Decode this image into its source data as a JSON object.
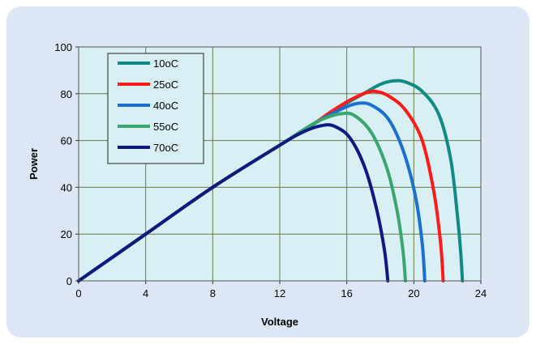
{
  "chart_data": {
    "type": "line",
    "title": "",
    "xlabel": "Voltage",
    "ylabel": "Power",
    "xlim": [
      0,
      24
    ],
    "ylim": [
      0,
      100
    ],
    "xticks": [
      "0",
      "4",
      "8",
      "12",
      "16",
      "20",
      "24"
    ],
    "yticks": [
      "0",
      "20",
      "40",
      "60",
      "80",
      "100"
    ],
    "grid": true,
    "legend_position": "top-left",
    "plot_background": "#d8f0f4",
    "series": [
      {
        "name": "10oC",
        "color": "#0f8a84",
        "points": [
          [
            0,
            0
          ],
          [
            4,
            20
          ],
          [
            8,
            40
          ],
          [
            12,
            58
          ],
          [
            14,
            67
          ],
          [
            16,
            76
          ],
          [
            17,
            80
          ],
          [
            18,
            84
          ],
          [
            18.8,
            85.5
          ],
          [
            19.5,
            85
          ],
          [
            20.5,
            81
          ],
          [
            21.5,
            71
          ],
          [
            22.2,
            52
          ],
          [
            22.6,
            28
          ],
          [
            22.8,
            12
          ],
          [
            22.9,
            0
          ]
        ]
      },
      {
        "name": "25oC",
        "color": "#ff1a1a",
        "points": [
          [
            0,
            0
          ],
          [
            4,
            20
          ],
          [
            8,
            40
          ],
          [
            12,
            58
          ],
          [
            14,
            67
          ],
          [
            15,
            72
          ],
          [
            16,
            76.5
          ],
          [
            17,
            80
          ],
          [
            17.7,
            81
          ],
          [
            18.5,
            79
          ],
          [
            19.5,
            73
          ],
          [
            20.5,
            60
          ],
          [
            21.2,
            38
          ],
          [
            21.6,
            16
          ],
          [
            21.75,
            0
          ]
        ]
      },
      {
        "name": "40oC",
        "color": "#1a6fd1",
        "points": [
          [
            0,
            0
          ],
          [
            4,
            20
          ],
          [
            8,
            40
          ],
          [
            12,
            58
          ],
          [
            14,
            67
          ],
          [
            15,
            71
          ],
          [
            16,
            74.5
          ],
          [
            16.8,
            76
          ],
          [
            17.5,
            75
          ],
          [
            18.5,
            69
          ],
          [
            19.4,
            55
          ],
          [
            20.1,
            36
          ],
          [
            20.5,
            16
          ],
          [
            20.65,
            0
          ]
        ]
      },
      {
        "name": "55oC",
        "color": "#3aa66e",
        "points": [
          [
            0,
            0
          ],
          [
            4,
            20
          ],
          [
            8,
            40
          ],
          [
            12,
            58
          ],
          [
            13.5,
            65
          ],
          [
            14.5,
            69
          ],
          [
            15.7,
            71.5
          ],
          [
            16.5,
            70.5
          ],
          [
            17.5,
            63
          ],
          [
            18.4,
            48
          ],
          [
            19,
            30
          ],
          [
            19.35,
            13
          ],
          [
            19.5,
            0
          ]
        ]
      },
      {
        "name": "70oC",
        "color": "#0d1a80",
        "points": [
          [
            0,
            0
          ],
          [
            4,
            20
          ],
          [
            8,
            40
          ],
          [
            12,
            58
          ],
          [
            13.5,
            64
          ],
          [
            14.6,
            66.5
          ],
          [
            15.3,
            66
          ],
          [
            16.2,
            61
          ],
          [
            17.1,
            48
          ],
          [
            17.8,
            30
          ],
          [
            18.25,
            13
          ],
          [
            18.45,
            0
          ]
        ]
      }
    ]
  }
}
